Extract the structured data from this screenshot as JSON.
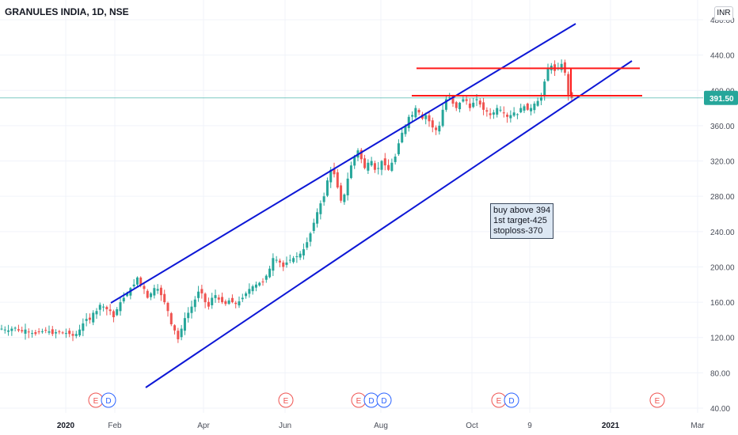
{
  "title": "GRANULES INDIA, 1D, NSE",
  "currency": "INR",
  "last_price": "391.50",
  "note": [
    "buy above 394",
    "1st target-425",
    "stoploss-370"
  ],
  "colors": {
    "up": "#26a69a",
    "down": "#ef5350",
    "channel": "#0d17d6",
    "levels": "#ff1a1a",
    "last_price": "#26a69a",
    "note_bg": "#dce7f3",
    "grid": "#f0f3fa"
  },
  "chart_data": {
    "type": "candlestick",
    "title": "GRANULES INDIA, 1D, NSE",
    "y_axis": {
      "ticks": [
        "40.00",
        "80.00",
        "120.00",
        "160.00",
        "200.00",
        "240.00",
        "280.00",
        "320.00",
        "360.00",
        "400.00",
        "440.00",
        "480.00"
      ],
      "ylim": [
        40,
        480
      ]
    },
    "x_axis": {
      "ticks": [
        "2020",
        "Feb",
        "Apr",
        "Jun",
        "Aug",
        "Oct",
        "9",
        "2021",
        "Mar"
      ],
      "bold_ticks": [
        "2020",
        "2021"
      ]
    },
    "series_close_approx": [
      130,
      129,
      128,
      130,
      131,
      128,
      127,
      129,
      126,
      125,
      124,
      126,
      127,
      128,
      127,
      124,
      126,
      126,
      125,
      125,
      124,
      122,
      124,
      129,
      136,
      141,
      140,
      148,
      150,
      157,
      155,
      152,
      150,
      143,
      152,
      160,
      165,
      170,
      176,
      180,
      188,
      180,
      175,
      165,
      170,
      176,
      175,
      168,
      160,
      150,
      135,
      128,
      118,
      130,
      142,
      148,
      155,
      163,
      172,
      170,
      160,
      155,
      165,
      168,
      163,
      160,
      158,
      162,
      160,
      158,
      161,
      165,
      170,
      175,
      178,
      180,
      182,
      183,
      190,
      198,
      210,
      208,
      205,
      200,
      205,
      208,
      210,
      212,
      215,
      220,
      228,
      238,
      250,
      262,
      272,
      280,
      298,
      310,
      305,
      290,
      275,
      282,
      300,
      315,
      325,
      332,
      322,
      312,
      318,
      320,
      310,
      312,
      320,
      315,
      310,
      318,
      325,
      340,
      352,
      360,
      370,
      372,
      380,
      375,
      368,
      372,
      365,
      358,
      355,
      360,
      378,
      390,
      392,
      385,
      380,
      386,
      390,
      388,
      380,
      386,
      390,
      384,
      378,
      376,
      372,
      375,
      380,
      378,
      374,
      370,
      372,
      375,
      373,
      380,
      382,
      378,
      380,
      385,
      388,
      392,
      410,
      425,
      428,
      422,
      425,
      430,
      420,
      395,
      391.5
    ],
    "channel_lines": [
      {
        "name": "upper channel",
        "from": [
          "Jan 2020",
          160
        ],
        "to": [
          "Dec 2020",
          470
        ]
      },
      {
        "name": "lower channel",
        "from": [
          "Mar 2020",
          65
        ],
        "to": [
          "Jan 2021",
          433
        ]
      }
    ],
    "horizontal_levels": [
      {
        "value": 425,
        "label": "1st target"
      },
      {
        "value": 394,
        "label": "buy above"
      }
    ],
    "events": [
      {
        "x_tick": "Feb",
        "badges": [
          "E",
          "D"
        ]
      },
      {
        "x_tick": "Jun",
        "badges": [
          "E"
        ]
      },
      {
        "x_tick": "Aug",
        "badges": [
          "E",
          "D",
          "D"
        ]
      },
      {
        "x_tick": "Oct",
        "badges": [
          "E",
          "D"
        ]
      },
      {
        "x_tick": "Mar",
        "badges": [
          "E"
        ]
      }
    ],
    "last_value": 391.5
  }
}
